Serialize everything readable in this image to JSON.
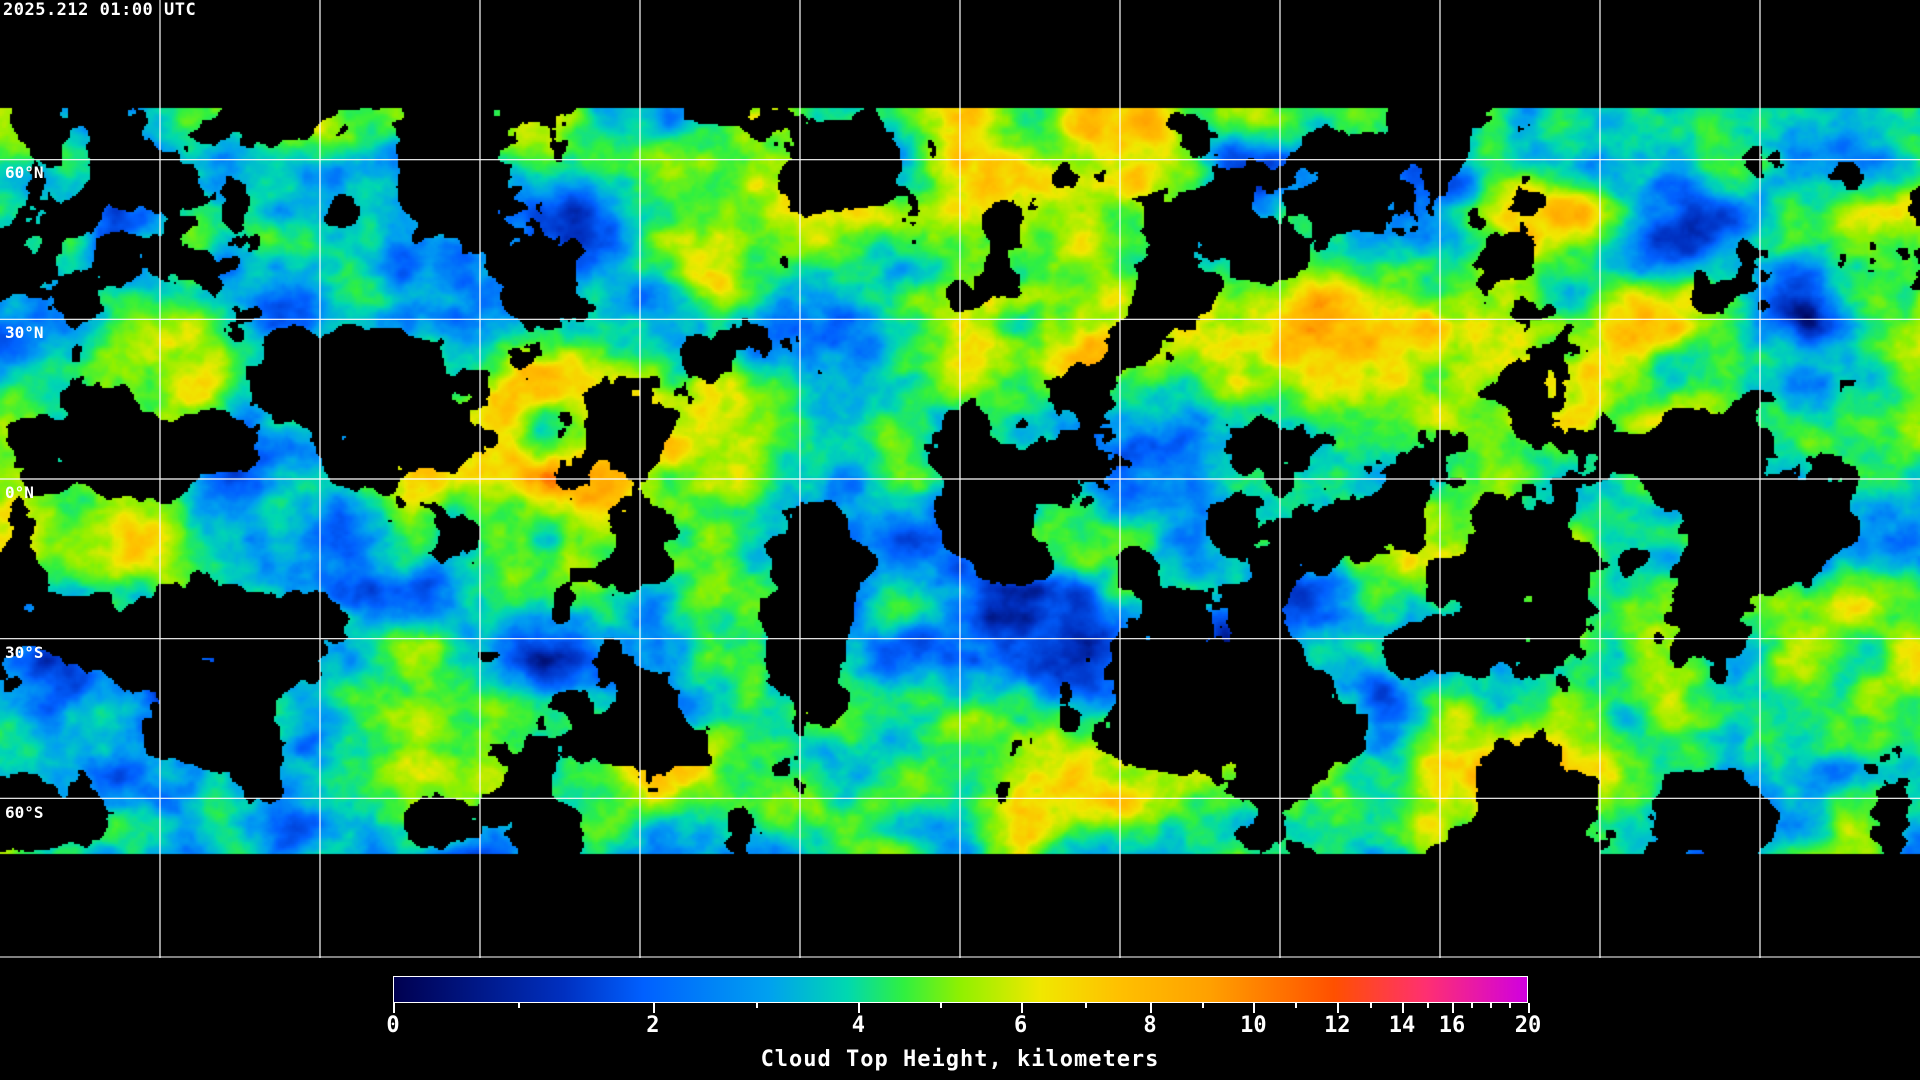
{
  "title": "2025.212 01:00 UTC",
  "map": {
    "projection": "equirectangular",
    "gridline_spacing_deg": 30,
    "lat_labels": [
      "60°N",
      "30°N",
      "0°N",
      "30°S",
      "60°S"
    ],
    "gridline_color": "#ffffff",
    "coastline_color": "#ffffff",
    "background": "#000000"
  },
  "colorbar": {
    "title": "Cloud Top Height, kilometers",
    "range": [
      0,
      20
    ],
    "tick_labels": [
      "0",
      "2",
      "4",
      "6",
      "8",
      "10",
      "12",
      "14",
      "16",
      "20"
    ],
    "minor_ticks": [
      1,
      3,
      5,
      7,
      9,
      11,
      13,
      15,
      17,
      18,
      19
    ],
    "colors": [
      "#000050",
      "#0030c0",
      "#0060ff",
      "#00a0f0",
      "#00d8b0",
      "#30f040",
      "#90f000",
      "#f0e800",
      "#ffc000",
      "#ffa000",
      "#ff5000",
      "#ff3070",
      "#d000e0"
    ]
  }
}
